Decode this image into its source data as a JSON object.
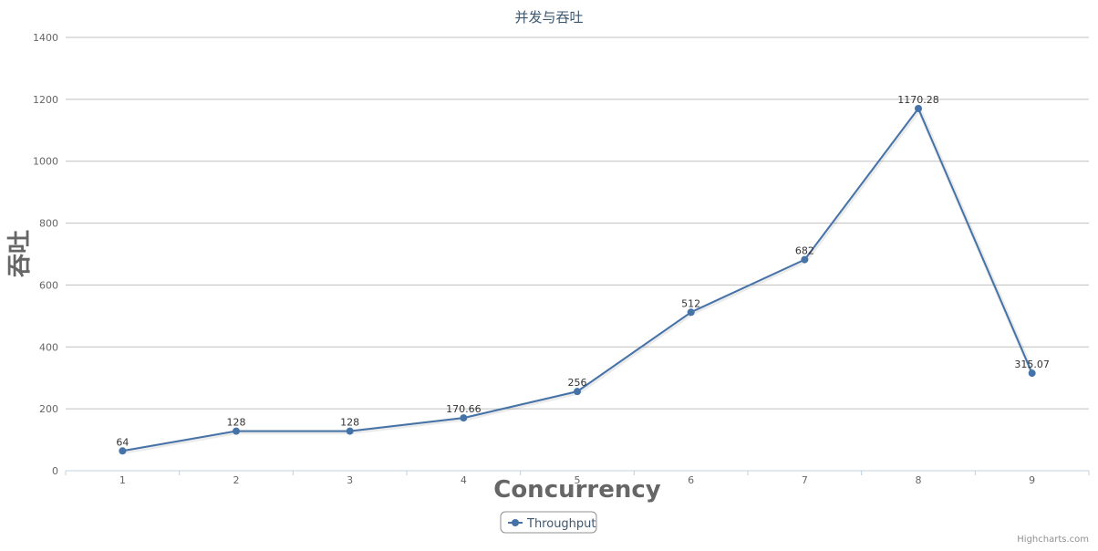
{
  "chart_data": {
    "type": "line",
    "title": "并发与吞吐",
    "xlabel": "Concurrency",
    "ylabel": "吞吐",
    "categories": [
      "1",
      "2",
      "3",
      "4",
      "5",
      "6",
      "7",
      "8",
      "9"
    ],
    "yticks": [
      0,
      200,
      400,
      600,
      800,
      1000,
      1200,
      1400
    ],
    "ylim": [
      0,
      1400
    ],
    "grid": true,
    "legend_position": "bottom-center",
    "series": [
      {
        "name": "Throughput",
        "color": "#4572A7",
        "values": [
          64,
          128,
          128,
          170.66,
          256,
          512,
          682,
          1170.28,
          315.07
        ],
        "labels": [
          "64",
          "128",
          "128",
          "170.66",
          "256",
          "512",
          "682",
          "1170.28",
          "315.07"
        ]
      }
    ]
  },
  "credits": "Highcharts.com"
}
